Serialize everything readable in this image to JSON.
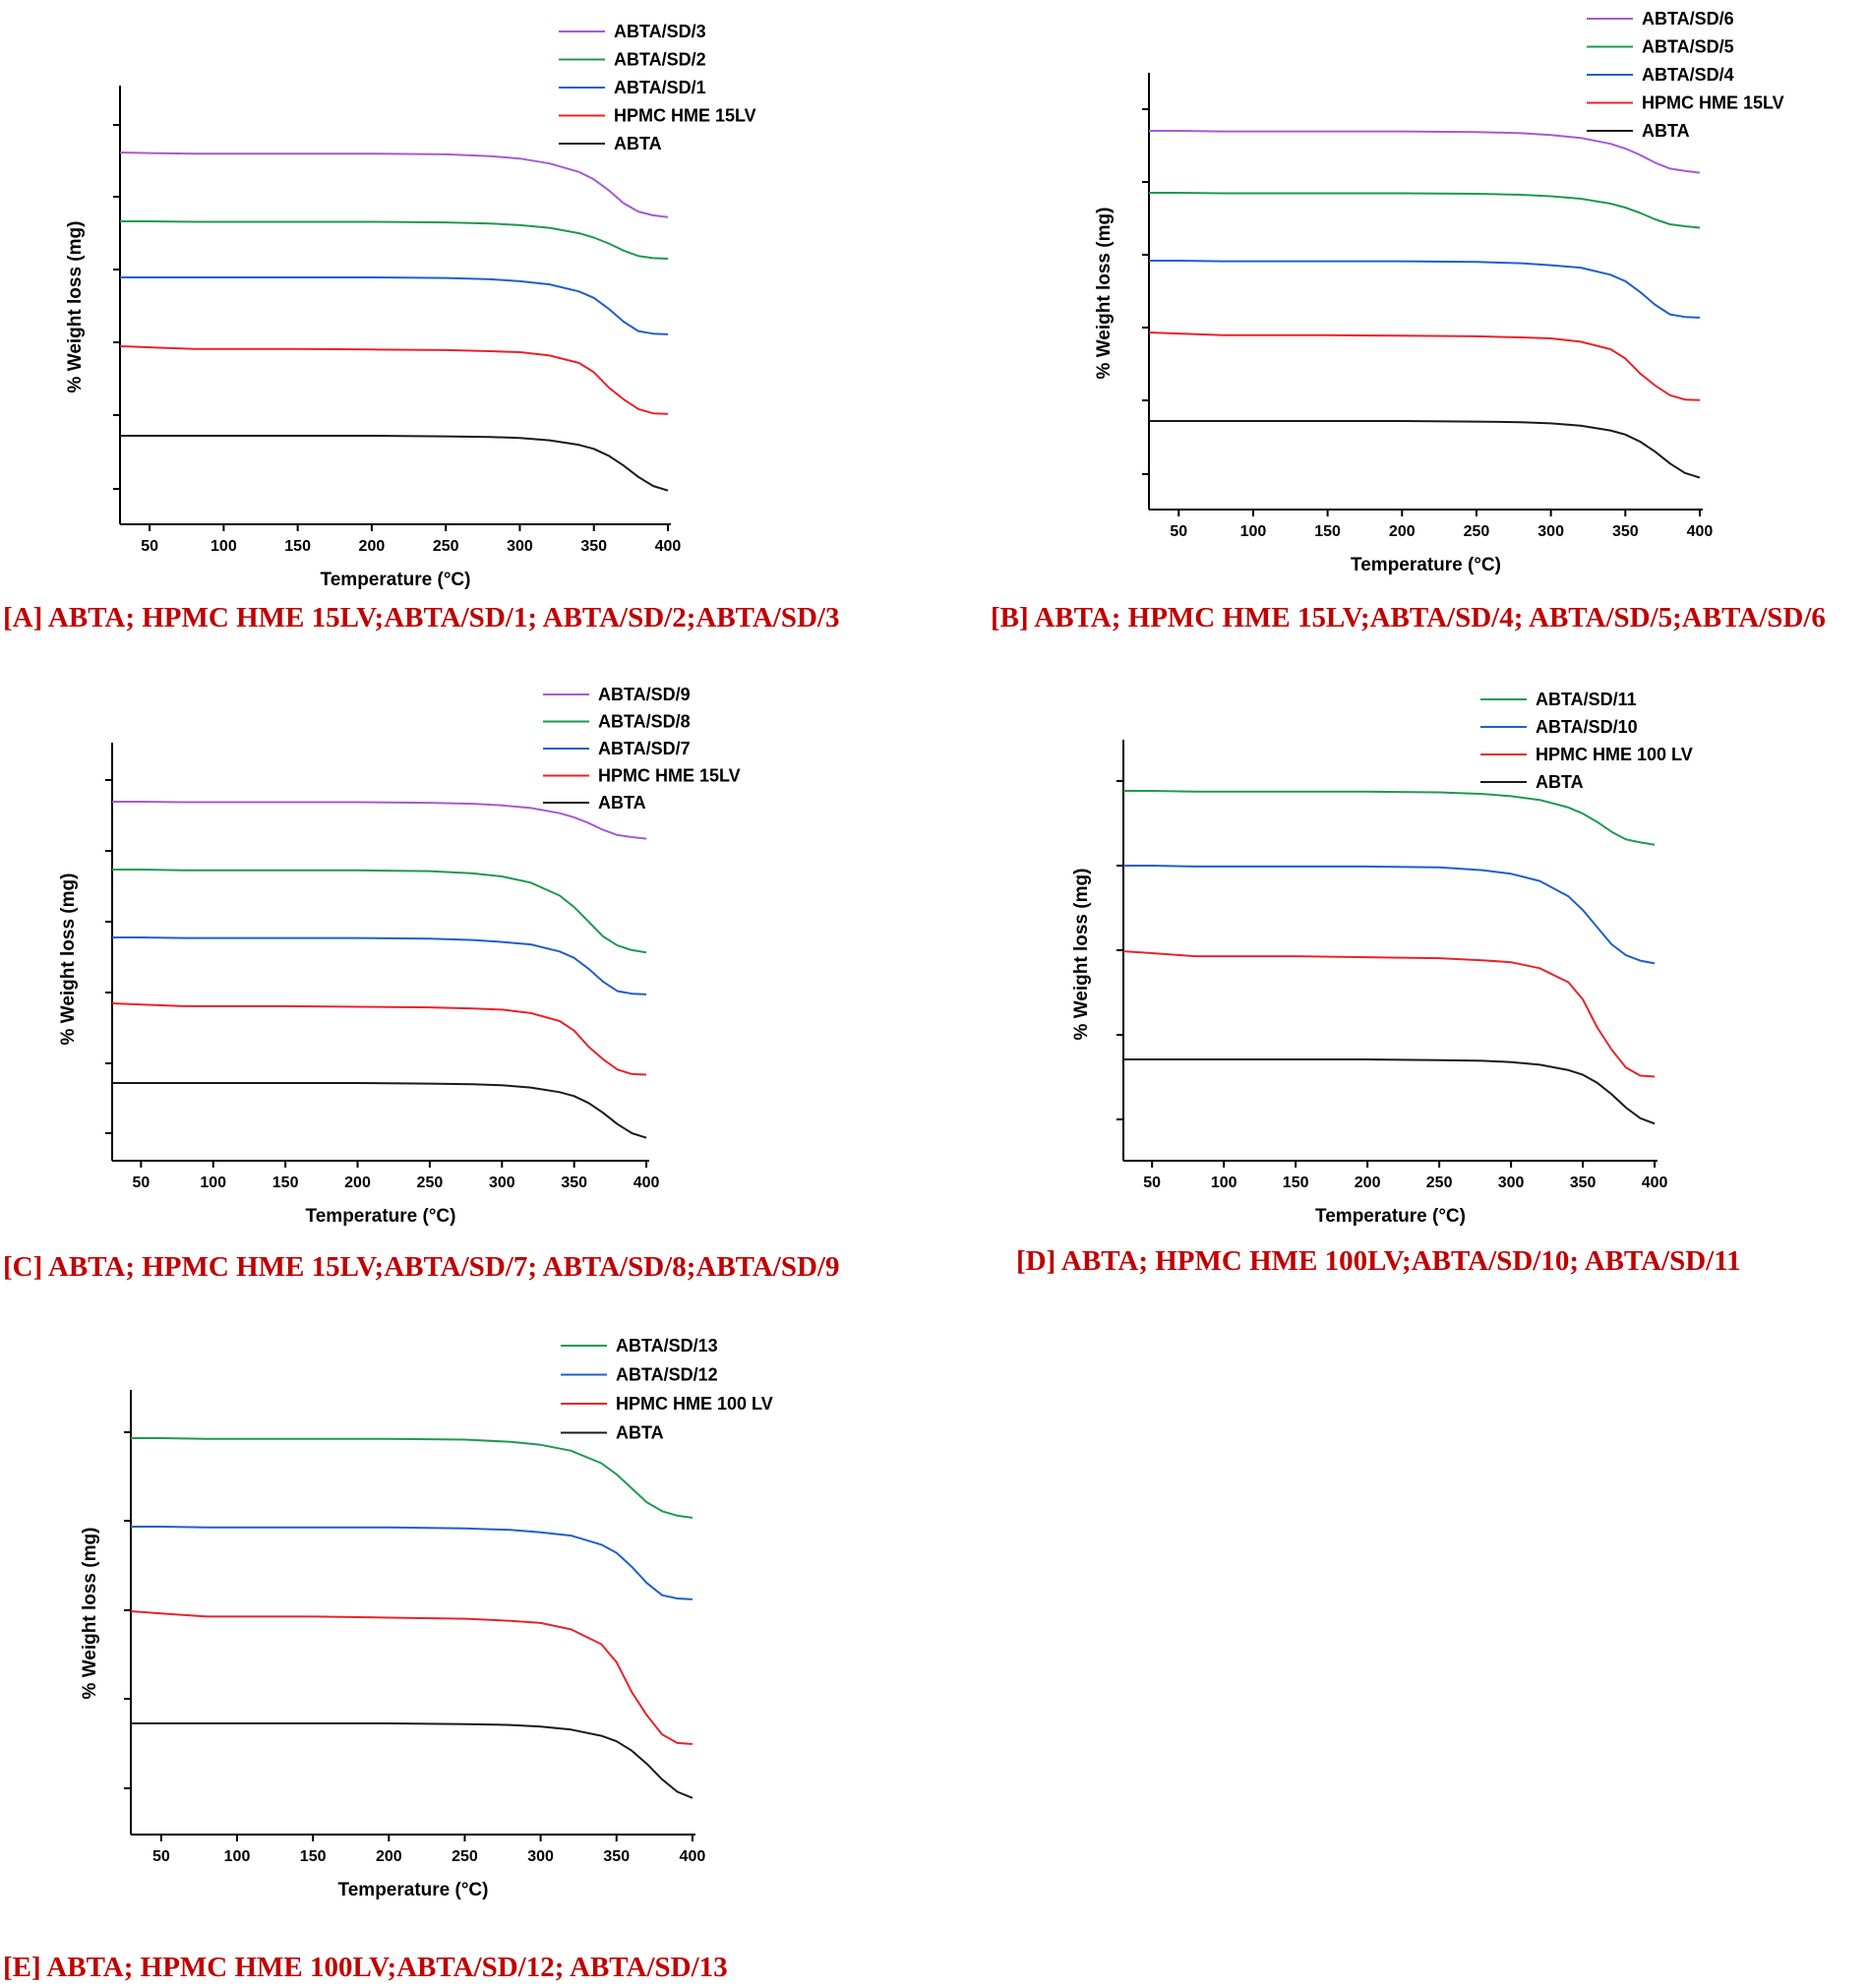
{
  "colors": {
    "ABTA": "#1a1a1a",
    "HPMC HME 15LV": "#e8232a",
    "HPMC HME 100 LV": "#e8232a",
    "ABTA/SD/1": "#1f5fcc",
    "ABTA/SD/4": "#1f5fcc",
    "ABTA/SD/7": "#1f5fcc",
    "ABTA/SD/10": "#1f5fcc",
    "ABTA/SD/12": "#1f5fcc",
    "ABTA/SD/2": "#1e9a50",
    "ABTA/SD/5": "#1e9a50",
    "ABTA/SD/8": "#1e9a50",
    "ABTA/SD/11": "#1e9a50",
    "ABTA/SD/13": "#1e9a50",
    "ABTA/SD/3": "#a45ad6",
    "ABTA/SD/6": "#a45ad6",
    "ABTA/SD/9": "#a45ad6",
    "caption": "#c00000"
  },
  "chart_data": [
    {
      "type": "line",
      "caption": "[A] ABTA; HPMC HME 15LV;ABTA/SD/1; ABTA/SD/2;ABTA/SD/3",
      "xlabel": "Temperature (°C)",
      "ylabel": "% Weight loss (mg)",
      "xticks": [
        "50",
        "100",
        "150",
        "200",
        "250",
        "300",
        "350",
        "400"
      ],
      "xlim": [
        30,
        402
      ],
      "legend": [
        "ABTA/SD/3",
        "ABTA/SD/2",
        "ABTA/SD/1",
        "HPMC HME 15LV",
        "ABTA"
      ],
      "x": [
        30,
        50,
        80,
        100,
        150,
        200,
        250,
        280,
        300,
        320,
        340,
        350,
        360,
        370,
        380,
        390,
        400
      ],
      "series": [
        {
          "name": "ABTA/SD/3",
          "values": [
            100,
            99.9,
            99.8,
            99.8,
            99.8,
            99.8,
            99.7,
            99.4,
            99.0,
            98.2,
            96.8,
            95.6,
            93.8,
            91.7,
            90.3,
            89.7,
            89.4
          ]
        },
        {
          "name": "ABTA/SD/2",
          "values": [
            100,
            100,
            99.9,
            99.9,
            99.9,
            99.9,
            99.8,
            99.6,
            99.3,
            98.8,
            97.8,
            97.0,
            95.9,
            94.6,
            93.6,
            93.2,
            93.1
          ]
        },
        {
          "name": "ABTA/SD/1",
          "values": [
            100,
            100,
            100,
            100,
            100,
            100,
            99.9,
            99.7,
            99.4,
            98.9,
            97.8,
            96.8,
            95.1,
            93.1,
            91.6,
            91.2,
            91.1
          ]
        },
        {
          "name": "HPMC HME 15LV",
          "values": [
            100,
            99.8,
            99.5,
            99.5,
            99.5,
            99.4,
            99.3,
            99.1,
            98.9,
            98.3,
            96.9,
            95.2,
            92.4,
            90.2,
            88.4,
            87.6,
            87.5
          ]
        },
        {
          "name": "ABTA",
          "values": [
            100,
            100,
            100,
            100,
            100,
            100,
            99.9,
            99.8,
            99.6,
            99.2,
            98.4,
            97.7,
            96.5,
            94.8,
            92.8,
            91.2,
            90.4
          ]
        }
      ]
    },
    {
      "type": "line",
      "caption": "[B] ABTA; HPMC HME 15LV;ABTA/SD/4; ABTA/SD/5;ABTA/SD/6",
      "xlabel": "Temperature (°C)",
      "ylabel": "% Weight loss (mg)",
      "xticks": [
        "50",
        "100",
        "150",
        "200",
        "250",
        "300",
        "350",
        "400"
      ],
      "xlim": [
        30,
        402
      ],
      "legend": [
        "ABTA/SD/6",
        "ABTA/SD/5",
        "ABTA/SD/4",
        "HPMC HME 15LV",
        "ABTA"
      ],
      "x": [
        30,
        50,
        80,
        100,
        150,
        200,
        250,
        280,
        300,
        320,
        340,
        350,
        360,
        370,
        380,
        390,
        400
      ],
      "series": [
        {
          "name": "ABTA/SD/6",
          "values": [
            100,
            100,
            99.9,
            99.9,
            99.9,
            99.9,
            99.8,
            99.6,
            99.3,
            98.8,
            97.8,
            97.0,
            95.9,
            94.6,
            93.6,
            93.2,
            92.9
          ]
        },
        {
          "name": "ABTA/SD/5",
          "values": [
            100,
            100,
            99.9,
            99.9,
            99.9,
            99.9,
            99.8,
            99.6,
            99.3,
            98.8,
            97.8,
            97.0,
            95.9,
            94.6,
            93.6,
            93.2,
            92.9
          ]
        },
        {
          "name": "ABTA/SD/4",
          "values": [
            100,
            100,
            99.9,
            99.9,
            99.9,
            99.9,
            99.8,
            99.6,
            99.3,
            98.9,
            97.8,
            96.8,
            95.1,
            93.1,
            91.6,
            91.2,
            91.1
          ]
        },
        {
          "name": "HPMC HME 15LV",
          "values": [
            100,
            99.8,
            99.5,
            99.5,
            99.5,
            99.4,
            99.3,
            99.1,
            98.9,
            98.3,
            96.9,
            95.2,
            92.4,
            90.2,
            88.4,
            87.6,
            87.5
          ]
        },
        {
          "name": "ABTA",
          "values": [
            100,
            100,
            100,
            100,
            100,
            100,
            99.9,
            99.8,
            99.6,
            99.2,
            98.4,
            97.7,
            96.5,
            94.8,
            92.8,
            91.2,
            90.4
          ]
        }
      ]
    },
    {
      "type": "line",
      "caption": "[C] ABTA; HPMC HME 15LV;ABTA/SD/7; ABTA/SD/8;ABTA/SD/9",
      "xlabel": "Temperature (°C)",
      "ylabel": "% Weight loss (mg)",
      "xticks": [
        "50",
        "100",
        "150",
        "200",
        "250",
        "300",
        "350",
        "400"
      ],
      "xlim": [
        30,
        402
      ],
      "legend": [
        "ABTA/SD/9",
        "ABTA/SD/8",
        "ABTA/SD/7",
        "HPMC HME 15LV",
        "ABTA"
      ],
      "x": [
        30,
        50,
        80,
        100,
        150,
        200,
        250,
        280,
        300,
        320,
        340,
        350,
        360,
        370,
        380,
        390,
        400
      ],
      "series": [
        {
          "name": "ABTA/SD/9",
          "values": [
            100,
            100,
            99.9,
            99.9,
            99.9,
            99.9,
            99.8,
            99.6,
            99.3,
            98.8,
            97.8,
            97.0,
            95.9,
            94.6,
            93.6,
            93.2,
            92.9
          ]
        },
        {
          "name": "ABTA/SD/8",
          "values": [
            100,
            100,
            99.9,
            99.9,
            99.9,
            99.9,
            99.8,
            99.5,
            99.1,
            98.3,
            96.6,
            95.1,
            93.2,
            91.3,
            90.1,
            89.5,
            89.2
          ]
        },
        {
          "name": "ABTA/SD/7",
          "values": [
            100,
            100,
            99.9,
            99.9,
            99.9,
            99.9,
            99.8,
            99.6,
            99.3,
            98.9,
            97.8,
            96.8,
            95.1,
            93.1,
            91.6,
            91.2,
            91.1
          ]
        },
        {
          "name": "HPMC HME 15LV",
          "values": [
            100,
            99.8,
            99.5,
            99.5,
            99.5,
            99.4,
            99.3,
            99.1,
            98.9,
            98.3,
            96.9,
            95.2,
            92.4,
            90.2,
            88.4,
            87.6,
            87.5
          ]
        },
        {
          "name": "ABTA",
          "values": [
            100,
            100,
            100,
            100,
            100,
            100,
            99.9,
            99.8,
            99.6,
            99.2,
            98.4,
            97.7,
            96.5,
            94.8,
            92.8,
            91.2,
            90.4
          ]
        }
      ]
    },
    {
      "type": "line",
      "caption": "[D] ABTA; HPMC HME 100LV;ABTA/SD/10; ABTA/SD/11",
      "xlabel": "Temperature (°C)",
      "ylabel": "% Weight loss (mg)",
      "xticks": [
        "50",
        "100",
        "150",
        "200",
        "250",
        "300",
        "350",
        "400"
      ],
      "xlim": [
        30,
        402
      ],
      "legend": [
        "ABTA/SD/11",
        "ABTA/SD/10",
        "HPMC HME 100 LV",
        "ABTA"
      ],
      "x": [
        30,
        50,
        80,
        100,
        150,
        200,
        250,
        280,
        300,
        320,
        340,
        350,
        360,
        370,
        380,
        390,
        400
      ],
      "series": [
        {
          "name": "ABTA/SD/11",
          "values": [
            100,
            100,
            99.9,
            99.9,
            99.9,
            99.9,
            99.8,
            99.6,
            99.3,
            98.8,
            97.8,
            97.0,
            95.9,
            94.6,
            93.6,
            93.2,
            92.9
          ]
        },
        {
          "name": "ABTA/SD/10",
          "values": [
            100,
            100,
            99.9,
            99.9,
            99.9,
            99.9,
            99.8,
            99.5,
            99.1,
            98.3,
            96.6,
            95.1,
            93.2,
            91.3,
            90.1,
            89.5,
            89.2
          ]
        },
        {
          "name": "HPMC HME 100 LV",
          "values": [
            100,
            99.8,
            99.5,
            99.5,
            99.5,
            99.4,
            99.3,
            99.1,
            98.9,
            98.3,
            96.9,
            95.2,
            92.4,
            90.2,
            88.4,
            87.6,
            87.5
          ]
        },
        {
          "name": "ABTA",
          "values": [
            100,
            100,
            100,
            100,
            100,
            100,
            99.9,
            99.8,
            99.6,
            99.2,
            98.4,
            97.7,
            96.5,
            94.8,
            92.8,
            91.2,
            90.4
          ]
        }
      ]
    },
    {
      "type": "line",
      "caption": "[E] ABTA; HPMC HME 100LV;ABTA/SD/12; ABTA/SD/13",
      "xlabel": "Temperature (°C)",
      "ylabel": "% Weight loss (mg)",
      "xticks": [
        "50",
        "100",
        "150",
        "200",
        "250",
        "300",
        "350",
        "400"
      ],
      "xlim": [
        30,
        402
      ],
      "legend": [
        "ABTA/SD/13",
        "ABTA/SD/12",
        "HPMC HME 100 LV",
        "ABTA"
      ],
      "x": [
        30,
        50,
        80,
        100,
        150,
        200,
        250,
        280,
        300,
        320,
        340,
        350,
        360,
        370,
        380,
        390,
        400
      ],
      "series": [
        {
          "name": "ABTA/SD/13",
          "values": [
            100,
            100,
            99.9,
            99.9,
            99.9,
            99.9,
            99.8,
            99.5,
            99.1,
            98.3,
            96.6,
            95.1,
            93.2,
            91.3,
            90.1,
            89.5,
            89.2
          ]
        },
        {
          "name": "ABTA/SD/12",
          "values": [
            100,
            100,
            99.9,
            99.9,
            99.9,
            99.9,
            99.8,
            99.6,
            99.3,
            98.9,
            97.8,
            96.8,
            95.1,
            93.1,
            91.6,
            91.2,
            91.1
          ]
        },
        {
          "name": "HPMC HME 100 LV",
          "values": [
            100,
            99.8,
            99.5,
            99.5,
            99.5,
            99.4,
            99.3,
            99.1,
            98.9,
            98.3,
            96.9,
            95.2,
            92.4,
            90.2,
            88.4,
            87.6,
            87.5
          ]
        },
        {
          "name": "ABTA",
          "values": [
            100,
            100,
            100,
            100,
            100,
            100,
            99.9,
            99.8,
            99.6,
            99.2,
            98.4,
            97.7,
            96.5,
            94.8,
            92.8,
            91.2,
            90.4
          ]
        }
      ]
    }
  ]
}
